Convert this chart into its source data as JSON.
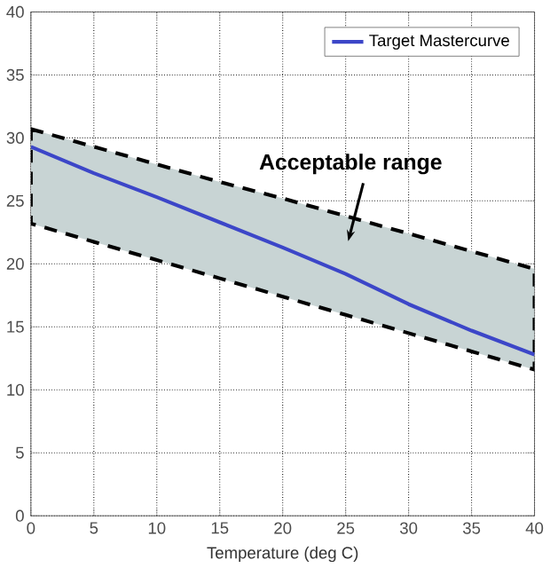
{
  "chart_data": {
    "type": "line",
    "x": [
      0,
      5,
      10,
      15,
      20,
      25,
      30,
      35,
      40
    ],
    "series": [
      {
        "name": "Target Mastercurve",
        "color": "#3c46c8",
        "values": [
          29.3,
          27.2,
          25.3,
          23.3,
          21.3,
          19.2,
          16.8,
          14.7,
          12.8
        ],
        "lower": [
          23.2,
          21.75,
          20.3,
          18.85,
          17.4,
          15.95,
          14.5,
          13.05,
          11.6
        ],
        "upper": [
          30.7,
          29.3,
          27.9,
          26.5,
          25.2,
          23.8,
          22.4,
          21.0,
          19.6
        ]
      }
    ],
    "xlabel": "Temperature (deg C)",
    "xlim": [
      0,
      40
    ],
    "ylim": [
      0,
      40
    ],
    "xticks": [
      0,
      5,
      10,
      15,
      20,
      25,
      30,
      35,
      40
    ],
    "yticks": [
      0,
      5,
      10,
      15,
      20,
      25,
      30,
      35,
      40
    ],
    "annotations": [
      "Acceptable range"
    ],
    "grid": true,
    "legend": "top right",
    "marker": "none",
    "line_style": "solid"
  }
}
